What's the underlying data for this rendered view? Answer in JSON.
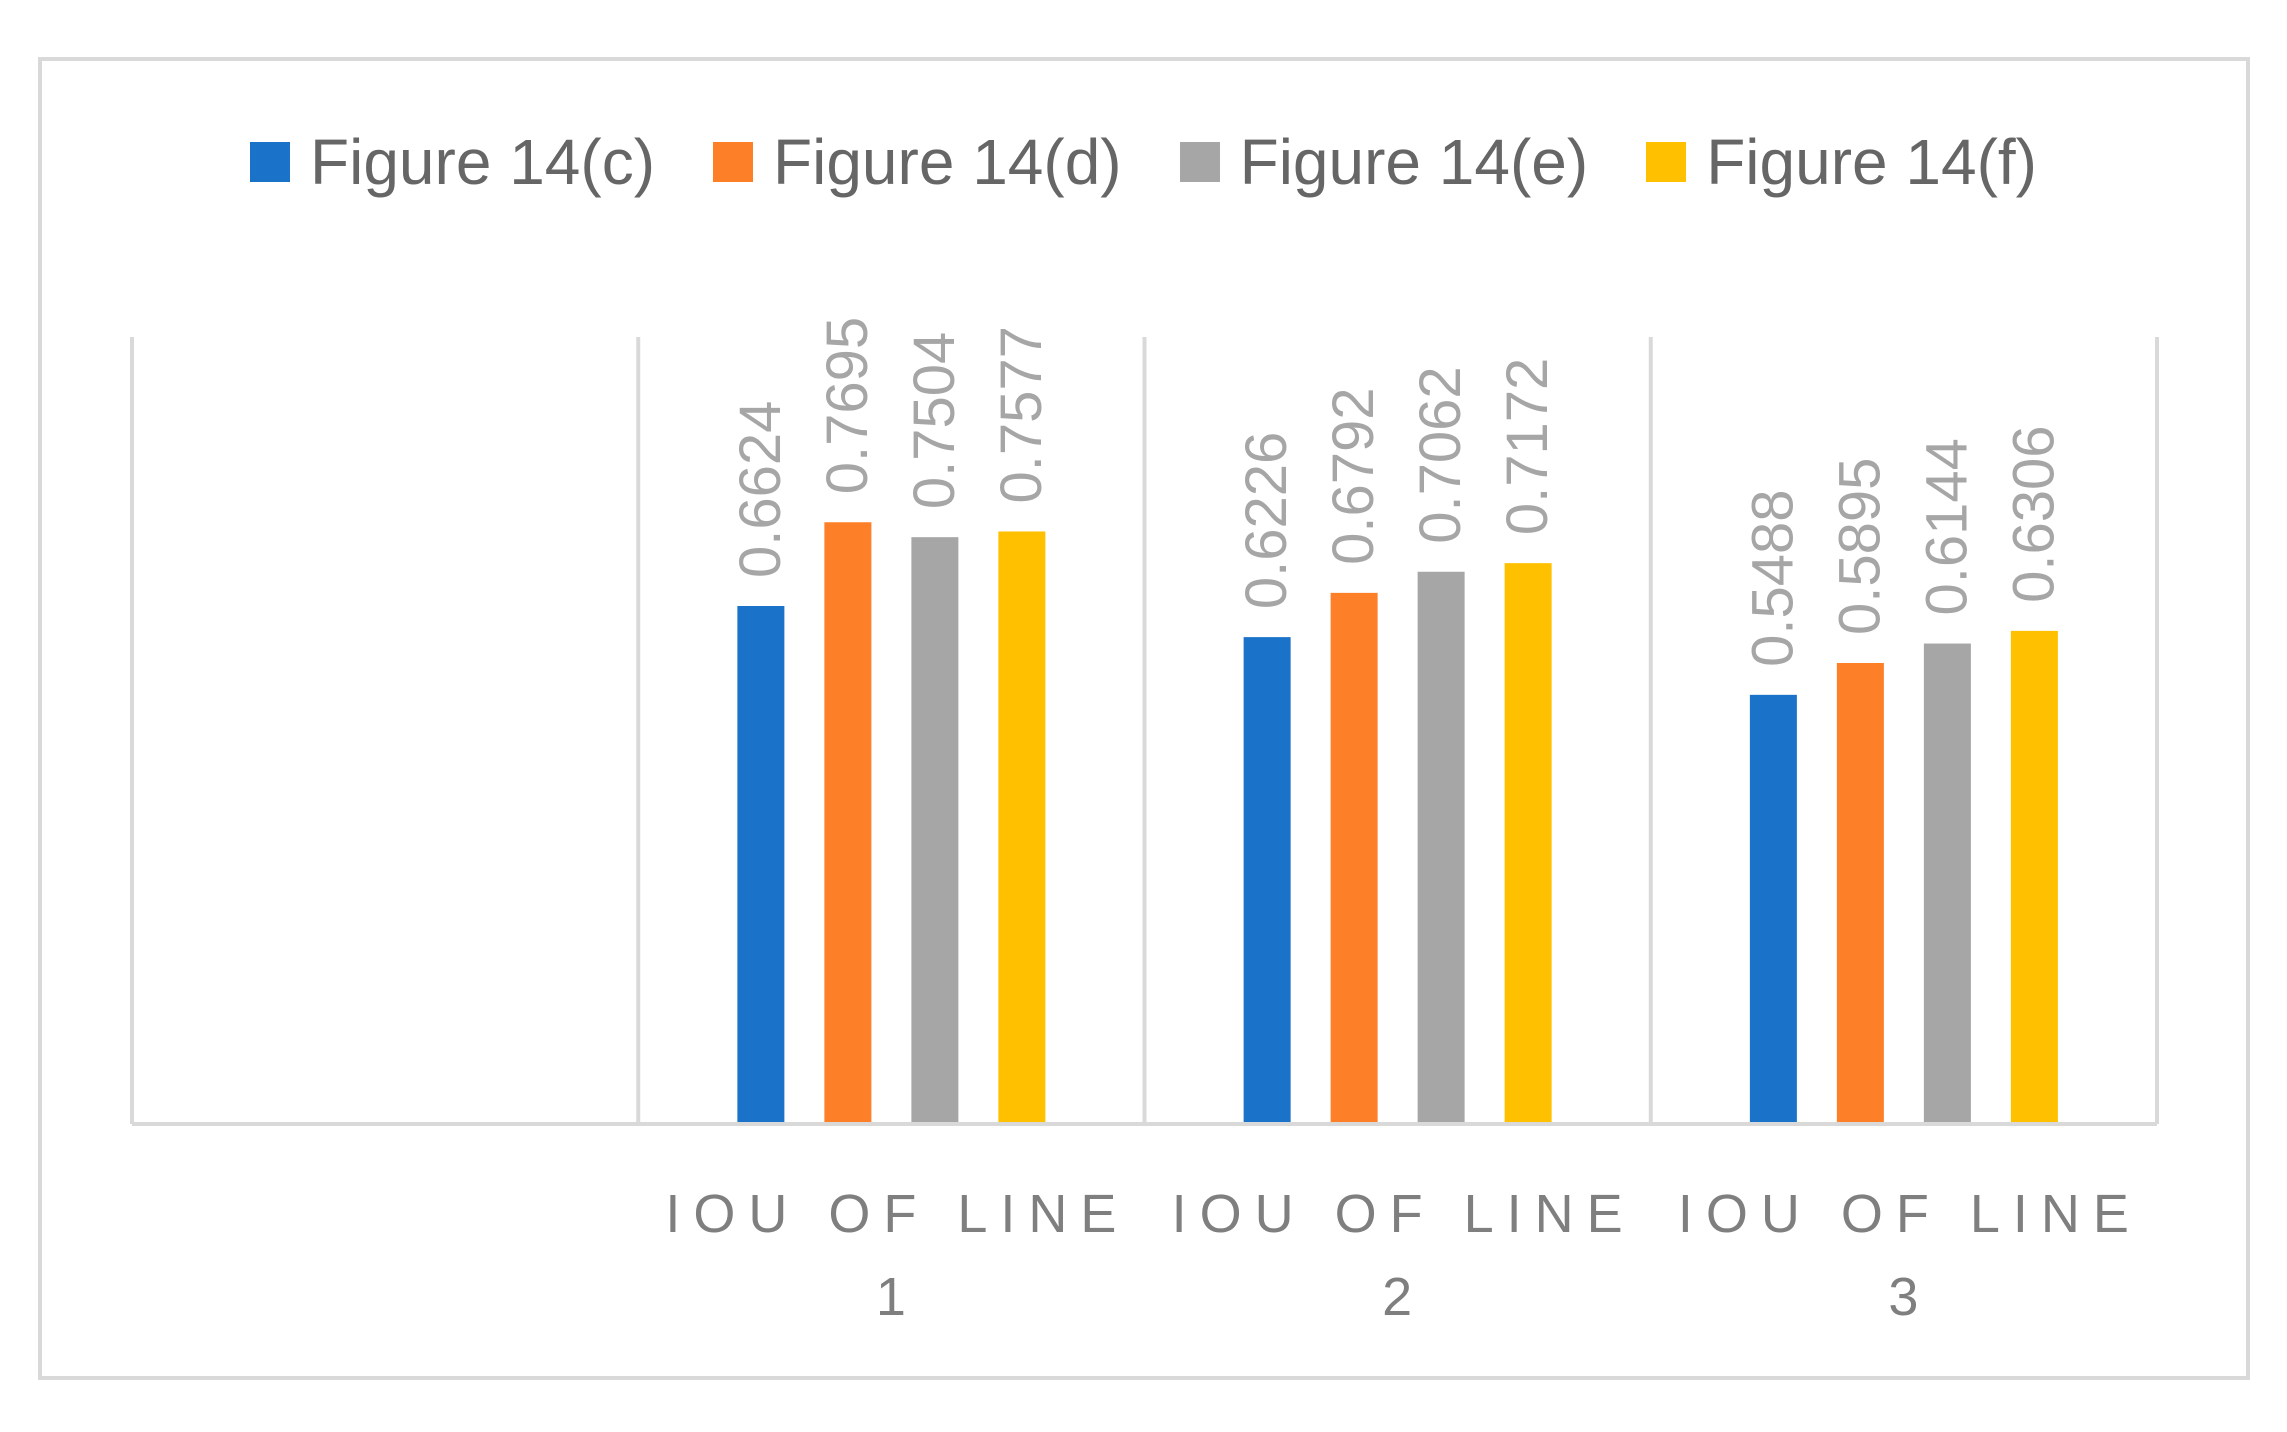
{
  "chart_data": {
    "type": "bar",
    "title": "",
    "xlabel": "",
    "ylabel": "",
    "ylim": [
      0,
      0.9
    ],
    "grid": false,
    "legend_position": "top",
    "categories": [
      "",
      "IOU OF LINE 1",
      "IOU OF LINE 2",
      "IOU OF LINE 3"
    ],
    "category_lines": [
      [
        ""
      ],
      [
        "IOU OF LINE",
        "1"
      ],
      [
        "IOU OF LINE",
        "2"
      ],
      [
        "IOU OF LINE",
        "3"
      ]
    ],
    "series": [
      {
        "name": "Figure 14(c)",
        "color": "#1a73c8",
        "values": [
          null,
          0.6624,
          0.6226,
          0.5488
        ]
      },
      {
        "name": "Figure 14(d)",
        "color": "#fd7f27",
        "values": [
          null,
          0.7695,
          0.6792,
          0.5895
        ]
      },
      {
        "name": "Figure 14(e)",
        "color": "#a6a6a6",
        "values": [
          null,
          0.7504,
          0.7062,
          0.6144
        ]
      },
      {
        "name": "Figure 14(f)",
        "color": "#ffc000",
        "values": [
          null,
          0.7577,
          0.7172,
          0.6306
        ]
      }
    ]
  }
}
